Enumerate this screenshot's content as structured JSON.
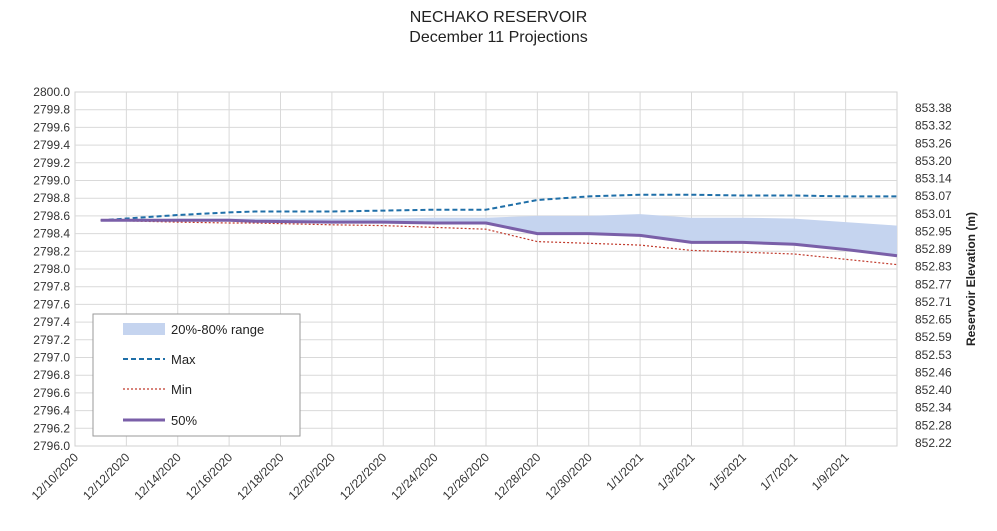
{
  "chart_data": {
    "type": "line",
    "title": "NECHAKO RESERVOIR",
    "subtitle": "December 11 Projections",
    "x": [
      "12/11/2020",
      "12/14/2020",
      "12/16/2020",
      "12/17/2020",
      "12/20/2020",
      "12/22/2020",
      "12/24/2020",
      "12/26/2020",
      "12/28/2020",
      "12/30/2020",
      "1/1/2021",
      "1/3/2021",
      "1/5/2021",
      "1/7/2021",
      "1/9/2021",
      "1/11/2021"
    ],
    "x_tick_labels": [
      "12/10/2020",
      "12/12/2020",
      "12/14/2020",
      "12/16/2020",
      "12/18/2020",
      "12/20/2020",
      "12/22/2020",
      "12/24/2020",
      "12/26/2020",
      "12/28/2020",
      "12/30/2020",
      "1/1/2021",
      "1/3/2021",
      "1/5/2021",
      "1/7/2021",
      "1/9/2021"
    ],
    "xlim": [
      "12/10/2020",
      "1/11/2021"
    ],
    "ylim": [
      2796.0,
      2800.0
    ],
    "y_tick_labels": [
      "2796.0",
      "2796.2",
      "2796.4",
      "2796.6",
      "2796.8",
      "2797.0",
      "2797.2",
      "2797.4",
      "2797.6",
      "2797.8",
      "2798.0",
      "2798.2",
      "2798.4",
      "2798.6",
      "2798.8",
      "2799.0",
      "2799.2",
      "2799.4",
      "2799.6",
      "2799.8",
      "2800.0"
    ],
    "y2label": "Reservoir Elevation (m)",
    "y2_tick_labels": [
      "852.22",
      "852.28",
      "852.34",
      "852.40",
      "852.46",
      "852.53",
      "852.59",
      "852.65",
      "852.71",
      "852.77",
      "852.83",
      "852.89",
      "852.95",
      "853.01",
      "853.07",
      "853.14",
      "853.20",
      "853.26",
      "853.32",
      "853.38"
    ],
    "grid": true,
    "legend_position": "bottom-left",
    "series": [
      {
        "name": "20%-80% range",
        "style": "band",
        "color": "#c5d4ef",
        "lower": [
          2798.55,
          2798.55,
          2798.55,
          2798.54,
          2798.53,
          2798.53,
          2798.51,
          2798.51,
          2798.4,
          2798.4,
          2798.38,
          2798.3,
          2798.3,
          2798.28,
          2798.22,
          2798.15
        ],
        "upper": [
          2798.55,
          2798.57,
          2798.57,
          2798.57,
          2798.57,
          2798.57,
          2798.58,
          2798.58,
          2798.6,
          2798.6,
          2798.62,
          2798.58,
          2798.58,
          2798.57,
          2798.53,
          2798.49
        ]
      },
      {
        "name": "Max",
        "style": "dashed",
        "color": "#1f6fa8",
        "values": [
          2798.55,
          2798.61,
          2798.64,
          2798.65,
          2798.65,
          2798.66,
          2798.67,
          2798.67,
          2798.78,
          2798.82,
          2798.84,
          2798.84,
          2798.83,
          2798.83,
          2798.82,
          2798.82
        ]
      },
      {
        "name": "Min",
        "style": "dotted",
        "color": "#c0392b",
        "values": [
          2798.55,
          2798.53,
          2798.52,
          2798.52,
          2798.5,
          2798.49,
          2798.47,
          2798.45,
          2798.31,
          2798.29,
          2798.27,
          2798.21,
          2798.19,
          2798.17,
          2798.11,
          2798.05
        ]
      },
      {
        "name": "50%",
        "style": "solid",
        "color": "#7a5fa8",
        "values": [
          2798.55,
          2798.55,
          2798.55,
          2798.54,
          2798.53,
          2798.53,
          2798.52,
          2798.52,
          2798.4,
          2798.4,
          2798.38,
          2798.3,
          2798.3,
          2798.28,
          2798.22,
          2798.15
        ]
      }
    ]
  }
}
